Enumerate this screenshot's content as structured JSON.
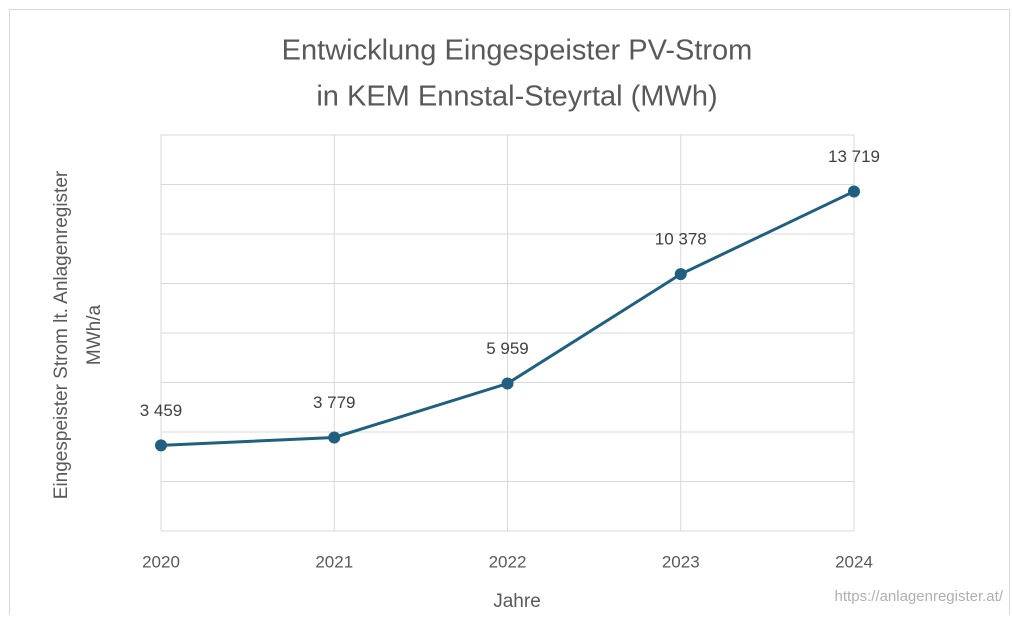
{
  "chart_data": {
    "type": "line",
    "title": [
      "Entwicklung Eingespeister PV-Strom",
      "in KEM Ennstal-Steyrtal (MWh)"
    ],
    "xlabel": "Jahre",
    "ylabel": [
      "Eingespeister Strom lt. Anlagenregister",
      "MWh/a"
    ],
    "categories": [
      "2020",
      "2021",
      "2022",
      "2023",
      "2024"
    ],
    "series": [
      {
        "name": "Eingespeister Strom",
        "color": "#1f5f7f",
        "values": [
          3459,
          3779,
          5959,
          10378,
          13719
        ],
        "value_labels": [
          "3 459",
          "3 779",
          "5 959",
          "10 378",
          "13 719"
        ]
      }
    ],
    "ylim": [
      0,
      16000
    ],
    "yticks": [
      0,
      2000,
      4000,
      6000,
      8000,
      10000,
      12000,
      14000,
      16000
    ],
    "grid": true,
    "source": "https://anlagenregister.at/"
  }
}
